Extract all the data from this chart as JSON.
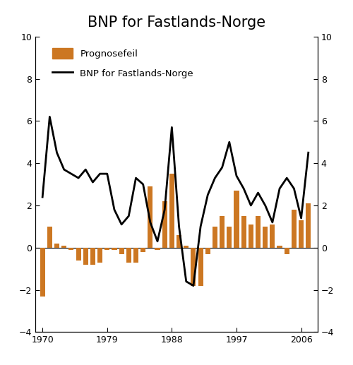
{
  "title": "BNP for Fastlands-Norge",
  "bar_color": "#CC7722",
  "line_color": "#000000",
  "background_color": "#ffffff",
  "ylim": [
    -4,
    10
  ],
  "yticks": [
    -4,
    -2,
    0,
    2,
    4,
    6,
    8,
    10
  ],
  "xlabel_ticks": [
    1970,
    1979,
    1988,
    1997,
    2006
  ],
  "legend_bar_label": "Prognosefeil",
  "legend_line_label": "BNP for Fastlands-Norge",
  "years": [
    1970,
    1971,
    1972,
    1973,
    1974,
    1975,
    1976,
    1977,
    1978,
    1979,
    1980,
    1981,
    1982,
    1983,
    1984,
    1985,
    1986,
    1987,
    1988,
    1989,
    1990,
    1991,
    1992,
    1993,
    1994,
    1995,
    1996,
    1997,
    1998,
    1999,
    2000,
    2001,
    2002,
    2003,
    2004,
    2005,
    2006,
    2007
  ],
  "bar_values": [
    -2.3,
    1.0,
    0.2,
    0.1,
    -0.1,
    -0.6,
    -0.8,
    -0.8,
    -0.7,
    -0.1,
    -0.1,
    -0.3,
    -0.7,
    -0.7,
    -0.2,
    2.9,
    -0.1,
    2.2,
    3.5,
    0.6,
    0.1,
    -1.8,
    -1.8,
    -0.3,
    1.0,
    1.5,
    1.0,
    2.7,
    1.5,
    1.1,
    1.5,
    1.0,
    1.1,
    0.1,
    -0.3,
    1.8,
    1.3,
    2.1
  ],
  "line_years": [
    1970,
    1971,
    1972,
    1973,
    1974,
    1975,
    1976,
    1977,
    1978,
    1979,
    1980,
    1981,
    1982,
    1983,
    1984,
    1985,
    1986,
    1987,
    1988,
    1989,
    1990,
    1991,
    1992,
    1993,
    1994,
    1995,
    1996,
    1997,
    1998,
    1999,
    2000,
    2001,
    2002,
    2003,
    2004,
    2005,
    2006,
    2007
  ],
  "line_values": [
    2.4,
    6.2,
    4.5,
    3.7,
    3.5,
    3.3,
    3.7,
    3.1,
    3.5,
    3.5,
    1.8,
    1.1,
    1.5,
    3.3,
    3.0,
    1.2,
    0.3,
    1.8,
    5.7,
    1.0,
    -1.6,
    -1.8,
    1.0,
    2.5,
    3.3,
    3.8,
    5.0,
    3.4,
    2.8,
    2.0,
    2.6,
    2.0,
    1.2,
    2.8,
    3.3,
    2.8,
    1.4,
    4.5
  ],
  "figsize": [
    5.0,
    5.17
  ],
  "dpi": 100,
  "title_fontsize": 15,
  "tick_fontsize": 9,
  "legend_fontsize": 9.5,
  "bar_width": 0.7,
  "line_width": 2.0,
  "xlim": [
    1969.0,
    2008.3
  ]
}
